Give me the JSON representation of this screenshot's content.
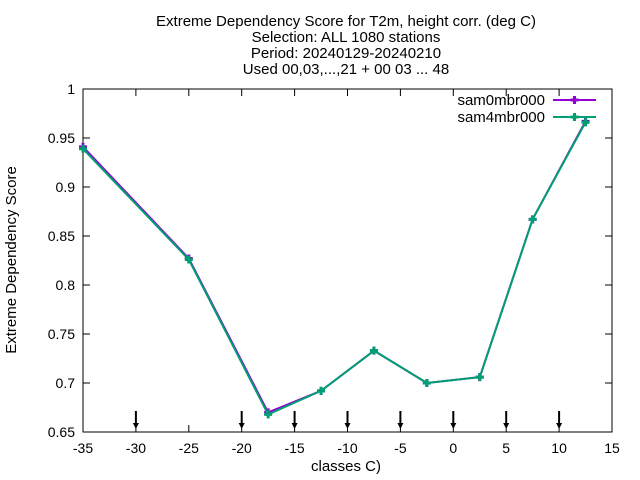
{
  "chart_data": {
    "type": "line",
    "title_lines": [
      "Extreme Dependency Score  for T2m, height corr. (deg C)",
      "Selection: ALL   1080 stations",
      "Period: 20240129-20240210",
      "Used 00,03,...,21 + 00 03 ... 48"
    ],
    "xlabel": "classes C)",
    "ylabel": "Extreme Dependency Score",
    "xlim": [
      -35,
      15
    ],
    "ylim": [
      0.65,
      1.0
    ],
    "x_ticks": [
      -35,
      -30,
      -25,
      -20,
      -15,
      -10,
      -5,
      0,
      5,
      10,
      15
    ],
    "y_ticks": [
      0.65,
      0.7,
      0.75,
      0.8,
      0.85,
      0.9,
      0.95,
      1.0
    ],
    "y_tick_labels": [
      "0.65",
      "0.7",
      "0.75",
      "0.8",
      "0.85",
      "0.9",
      "0.95",
      "1"
    ],
    "marker_x": [
      -30,
      -20,
      -15,
      -10,
      -5,
      0,
      5,
      10
    ],
    "legend_position": "top-right",
    "grid": false,
    "series": [
      {
        "name": "sam0mbr000",
        "color": "#9400d3",
        "x": [
          -35,
          -25,
          -17.5,
          -12.5,
          -7.5,
          -2.5,
          2.5,
          7.5,
          12.5
        ],
        "values": [
          0.941,
          0.827,
          0.67,
          0.692,
          0.733,
          0.7,
          0.706,
          0.867,
          0.967
        ]
      },
      {
        "name": "sam4mbr000",
        "color": "#009e73",
        "x": [
          -35,
          -25,
          -17.5,
          -12.5,
          -7.5,
          -2.5,
          2.5,
          7.5,
          12.5
        ],
        "values": [
          0.939,
          0.826,
          0.668,
          0.692,
          0.733,
          0.7,
          0.706,
          0.867,
          0.966
        ]
      }
    ]
  }
}
